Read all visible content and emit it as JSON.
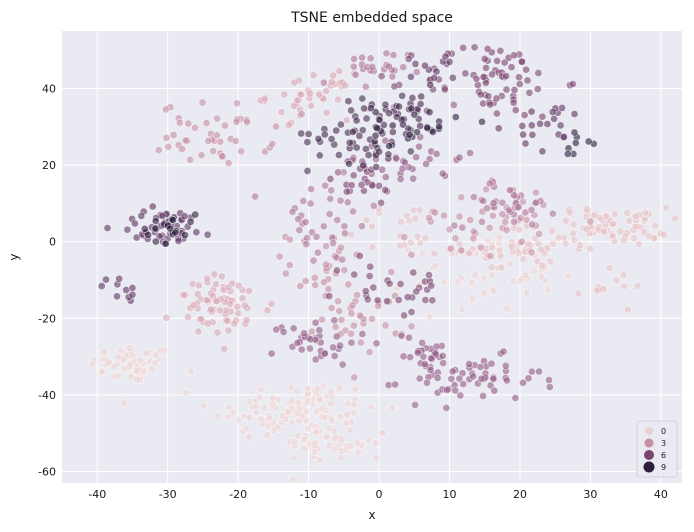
{
  "chart_data": {
    "type": "scatter",
    "title": "TSNE embedded space",
    "xlabel": "x",
    "ylabel": "y",
    "xlim": [
      -45,
      43
    ],
    "ylim": [
      -63,
      55
    ],
    "xticks": [
      -40,
      -30,
      -20,
      -10,
      0,
      10,
      20,
      30,
      40
    ],
    "yticks": [
      -60,
      -40,
      -20,
      0,
      20,
      40
    ],
    "grid": true,
    "background": "#eaeaf2",
    "legend": {
      "position": "bottom-right",
      "entries": [
        {
          "label": "0",
          "color": "#ecd0d1"
        },
        {
          "label": "3",
          "color": "#c48ea3"
        },
        {
          "label": "6",
          "color": "#7a4470"
        },
        {
          "label": "9",
          "color": "#2d1e3e"
        }
      ]
    },
    "clusters": [
      {
        "hue": 0,
        "cx": -35,
        "cy": -32,
        "sx": 3,
        "sy": 2.5,
        "n": 55
      },
      {
        "hue": 0,
        "cx": -12,
        "cy": -44,
        "sx": 6,
        "sy": 4,
        "n": 110
      },
      {
        "hue": 0,
        "cx": -6,
        "cy": -53,
        "sx": 4,
        "sy": 2.5,
        "n": 40
      },
      {
        "hue": 0,
        "cx": 15,
        "cy": -8,
        "sx": 5,
        "sy": 5,
        "n": 55
      },
      {
        "hue": 1,
        "cx": 20,
        "cy": -2,
        "sx": 4,
        "sy": 3,
        "n": 45
      },
      {
        "hue": 1,
        "cx": 33,
        "cy": 4,
        "sx": 4,
        "sy": 2.5,
        "n": 70
      },
      {
        "hue": 1,
        "cx": 33,
        "cy": -12,
        "sx": 2.5,
        "sy": 2,
        "n": 12
      },
      {
        "hue": 1,
        "cx": 3,
        "cy": 3,
        "sx": 4,
        "sy": 4,
        "n": 20
      },
      {
        "hue": 2,
        "cx": -10,
        "cy": 38,
        "sx": 3,
        "sy": 3,
        "n": 40
      },
      {
        "hue": 2,
        "cx": -22,
        "cy": -17,
        "sx": 3.5,
        "sy": 4,
        "n": 70
      },
      {
        "hue": 3,
        "cx": -23,
        "cy": 28,
        "sx": 4,
        "sy": 4,
        "n": 45
      },
      {
        "hue": 3,
        "cx": 15,
        "cy": 6,
        "sx": 5,
        "sy": 5,
        "n": 45
      },
      {
        "hue": 3,
        "cx": -2,
        "cy": -20,
        "sx": 3,
        "sy": 4,
        "n": 30
      },
      {
        "hue": 3,
        "cx": -7,
        "cy": -7,
        "sx": 3,
        "sy": 5,
        "n": 30
      },
      {
        "hue": 4,
        "cx": -2,
        "cy": 44,
        "sx": 3,
        "sy": 3,
        "n": 25
      },
      {
        "hue": 4,
        "cx": -8,
        "cy": 5,
        "sx": 4,
        "sy": 6,
        "n": 35
      },
      {
        "hue": 4,
        "cx": 18,
        "cy": 10,
        "sx": 3.5,
        "sy": 3,
        "n": 35
      },
      {
        "hue": 5,
        "cx": 13,
        "cy": -36,
        "sx": 5,
        "sy": 3,
        "n": 60
      },
      {
        "hue": 5,
        "cx": 6,
        "cy": -29,
        "sx": 2.5,
        "sy": 2.5,
        "n": 25
      },
      {
        "hue": 5,
        "cx": -9,
        "cy": -26,
        "sx": 3,
        "sy": 3,
        "n": 35
      },
      {
        "hue": 5,
        "cx": 4,
        "cy": 22,
        "sx": 4,
        "sy": 4,
        "n": 35
      },
      {
        "hue": 6,
        "cx": 16,
        "cy": 42,
        "sx": 5,
        "sy": 5,
        "n": 75
      },
      {
        "hue": 6,
        "cx": 2,
        "cy": -12,
        "sx": 4,
        "sy": 4,
        "n": 30
      },
      {
        "hue": 6,
        "cx": -3,
        "cy": 15,
        "sx": 3,
        "sy": 3,
        "n": 20
      },
      {
        "hue": 7,
        "cx": -30,
        "cy": 4,
        "sx": 3.5,
        "sy": 2.5,
        "n": 45
      },
      {
        "hue": 7,
        "cx": -37,
        "cy": -13,
        "sx": 1.5,
        "sy": 2,
        "n": 10
      },
      {
        "hue": 7,
        "cx": 25,
        "cy": 30,
        "sx": 3,
        "sy": 3,
        "n": 20
      },
      {
        "hue": 7,
        "cx": 8,
        "cy": 45,
        "sx": 2,
        "sy": 2,
        "n": 10
      },
      {
        "hue": 8,
        "cx": -2,
        "cy": 28,
        "sx": 4,
        "sy": 4,
        "n": 55
      },
      {
        "hue": 8,
        "cx": 3,
        "cy": 35,
        "sx": 3,
        "sy": 3,
        "n": 25
      },
      {
        "hue": 9,
        "cx": -30,
        "cy": 4,
        "sx": 2,
        "sy": 2,
        "n": 20
      },
      {
        "hue": 9,
        "cx": 28,
        "cy": 26,
        "sx": 1.5,
        "sy": 1.5,
        "n": 8
      },
      {
        "hue": 9,
        "cx": 5,
        "cy": 30,
        "sx": 3,
        "sy": 3,
        "n": 25
      }
    ],
    "palette": [
      "#efd5d5",
      "#e6c3c6",
      "#d8a9b5",
      "#c48ea3",
      "#ad7597",
      "#935b87",
      "#7a4470",
      "#5e3460",
      "#452a4f",
      "#2d1e3e"
    ],
    "point_alpha": 0.6
  }
}
